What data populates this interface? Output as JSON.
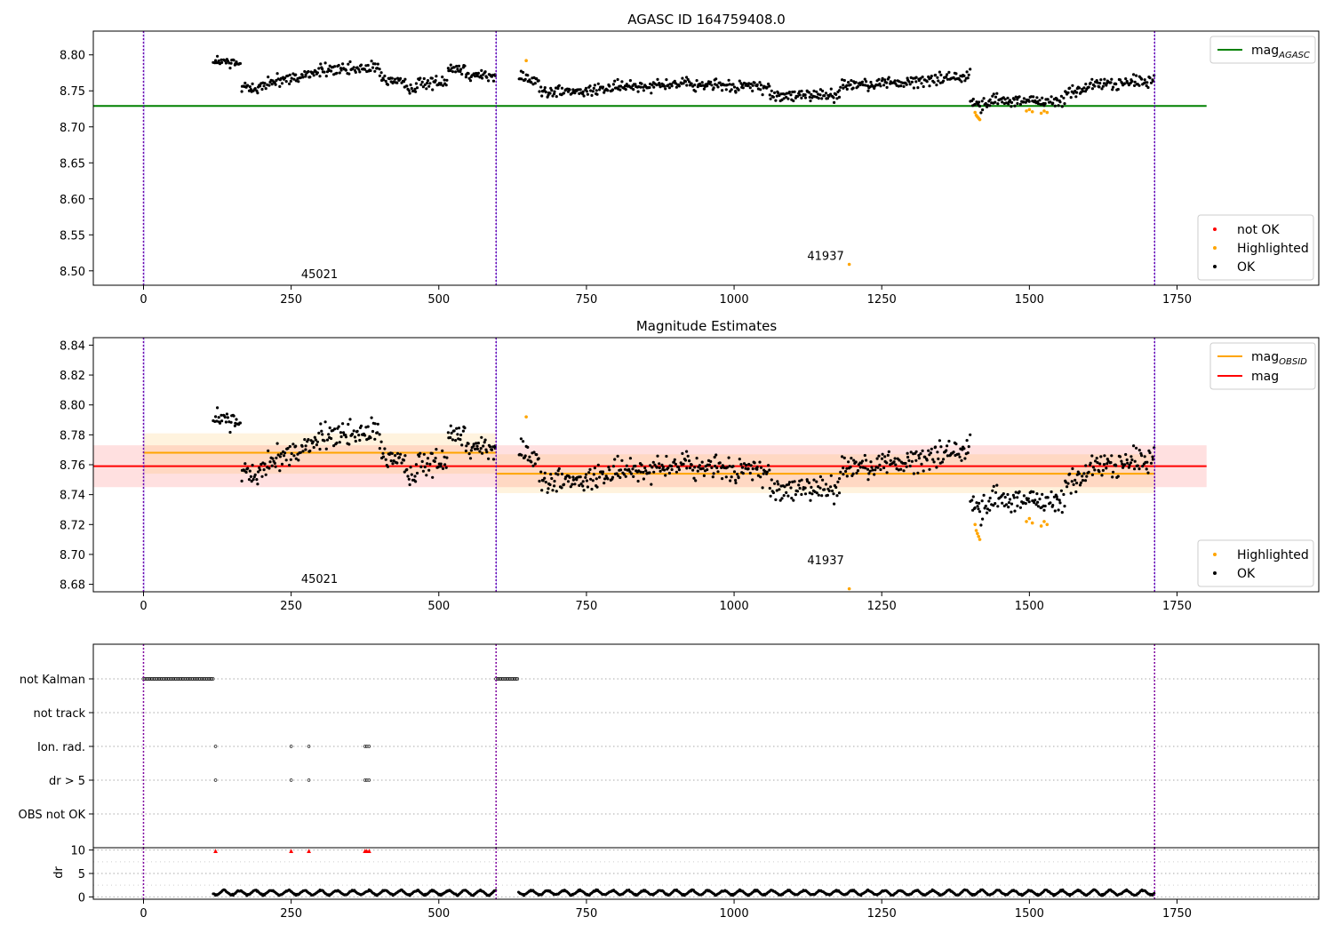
{
  "chart_data": [
    {
      "type": "scatter",
      "title": "AGASC ID 164759408.0",
      "xlim": [
        -85,
        1990
      ],
      "ylim": [
        8.48,
        8.833
      ],
      "x_ticks": [
        0,
        250,
        500,
        750,
        1000,
        1250,
        1500,
        1750
      ],
      "y_ticks": [
        8.5,
        8.55,
        8.6,
        8.65,
        8.7,
        8.75,
        8.8
      ],
      "y_tick_labels": [
        "8.50",
        "8.55",
        "8.60",
        "8.65",
        "8.70",
        "8.75",
        "8.80"
      ],
      "obs_boundaries": [
        0,
        597,
        1712
      ],
      "annotations": [
        {
          "text": "45021",
          "x": 298,
          "y": 8.49
        },
        {
          "text": "41937",
          "x": 1155,
          "y": 8.515
        }
      ],
      "reference_lines": [
        {
          "name": "mag",
          "subscript": "AGASC",
          "y": 8.729,
          "x_range": [
            -85,
            1800
          ],
          "color": "#008000"
        }
      ],
      "legend_lines": [
        {
          "label": "mag",
          "sub": "AGASC",
          "color": "#008000"
        }
      ],
      "legend_points": [
        {
          "label": "not OK",
          "color": "#ff0000"
        },
        {
          "label": "Highlighted",
          "color": "#ffa500"
        },
        {
          "label": "OK",
          "color": "#000000"
        }
      ],
      "series": [
        {
          "name": "OK",
          "color": "#000000",
          "segments": [
            {
              "x": [
                118,
                165
              ],
              "y": [
                8.792,
                8.786
              ]
            },
            {
              "x": [
                165,
                210
              ],
              "y": [
                8.756,
                8.754
              ]
            },
            {
              "x": [
                210,
                265
              ],
              "y": [
                8.764,
                8.768
              ]
            },
            {
              "x": [
                265,
                320
              ],
              "y": [
                8.772,
                8.782
              ]
            },
            {
              "x": [
                320,
                400
              ],
              "y": [
                8.778,
                8.782
              ]
            },
            {
              "x": [
                400,
                460
              ],
              "y": [
                8.77,
                8.752
              ]
            },
            {
              "x": [
                460,
                515
              ],
              "y": [
                8.758,
                8.765
              ]
            },
            {
              "x": [
                515,
                545
              ],
              "y": [
                8.782,
                8.78
              ]
            },
            {
              "x": [
                545,
                597
              ],
              "y": [
                8.775,
                8.768
              ]
            },
            {
              "x": [
                635,
                670
              ],
              "y": [
                8.772,
                8.762
              ]
            },
            {
              "x": [
                670,
                760
              ],
              "y": [
                8.75,
                8.748
              ]
            },
            {
              "x": [
                760,
                880
              ],
              "y": [
                8.752,
                8.76
              ]
            },
            {
              "x": [
                880,
                1060
              ],
              "y": [
                8.76,
                8.755
              ]
            },
            {
              "x": [
                1060,
                1180
              ],
              "y": [
                8.742,
                8.745
              ]
            },
            {
              "x": [
                1180,
                1270
              ],
              "y": [
                8.758,
                8.762
              ]
            },
            {
              "x": [
                1270,
                1400
              ],
              "y": [
                8.76,
                8.772
              ]
            },
            {
              "x": [
                1400,
                1430
              ],
              "y": [
                8.735,
                8.728
              ]
            },
            {
              "x": [
                1430,
                1560
              ],
              "y": [
                8.738,
                8.735
              ]
            },
            {
              "x": [
                1560,
                1600
              ],
              "y": [
                8.748,
                8.752
              ]
            },
            {
              "x": [
                1600,
                1712
              ],
              "y": [
                8.758,
                8.764
              ]
            }
          ]
        },
        {
          "name": "Highlighted",
          "color": "#ffa500",
          "x": [
            648,
            1408,
            1410,
            1412,
            1414,
            1416,
            1495,
            1500,
            1505,
            1520,
            1525,
            1530,
            1195
          ],
          "y": [
            8.792,
            8.72,
            8.716,
            8.714,
            8.712,
            8.71,
            8.722,
            8.724,
            8.721,
            8.719,
            8.722,
            8.72,
            8.509
          ]
        }
      ]
    },
    {
      "type": "scatter",
      "title": "Magnitude Estimates",
      "xlim": [
        -85,
        1990
      ],
      "ylim": [
        8.675,
        8.845
      ],
      "x_ticks": [
        0,
        250,
        500,
        750,
        1000,
        1250,
        1500,
        1750
      ],
      "y_ticks": [
        8.68,
        8.7,
        8.72,
        8.74,
        8.76,
        8.78,
        8.8,
        8.82,
        8.84
      ],
      "y_tick_labels": [
        "8.68",
        "8.70",
        "8.72",
        "8.74",
        "8.76",
        "8.78",
        "8.80",
        "8.82",
        "8.84"
      ],
      "obs_boundaries": [
        0,
        597,
        1712
      ],
      "annotations": [
        {
          "text": "45021",
          "x": 298,
          "y": 8.681
        },
        {
          "text": "41937",
          "x": 1155,
          "y": 8.6935
        }
      ],
      "bands": [
        {
          "x_range": [
            -85,
            1800
          ],
          "y_range": [
            8.745,
            8.773
          ],
          "color": "#ff0000",
          "opacity": 0.12
        },
        {
          "x_range": [
            0,
            597
          ],
          "y_range": [
            8.754,
            8.781
          ],
          "color": "#ffa500",
          "opacity": 0.13
        },
        {
          "x_range": [
            597,
            1712
          ],
          "y_range": [
            8.741,
            8.767
          ],
          "color": "#ffa500",
          "opacity": 0.13
        }
      ],
      "reference_lines": [
        {
          "name": "mag",
          "y": 8.759,
          "x_range": [
            -85,
            1800
          ],
          "color": "#ff0000"
        },
        {
          "name": "mag",
          "subscript": "OBSID",
          "y": 8.768,
          "x_range": [
            0,
            597
          ],
          "color": "#ffa500"
        },
        {
          "name": "mag",
          "subscript": "OBSID",
          "y": 8.754,
          "x_range": [
            597,
            1712
          ],
          "color": "#ffa500"
        }
      ],
      "legend_lines": [
        {
          "label": "mag",
          "sub": "OBSID",
          "color": "#ffa500"
        },
        {
          "label": "mag",
          "sub": "",
          "color": "#ff0000"
        }
      ],
      "legend_points": [
        {
          "label": "Highlighted",
          "color": "#ffa500"
        },
        {
          "label": "OK",
          "color": "#000000"
        }
      ],
      "series": [
        {
          "name": "OK",
          "color": "#000000",
          "segments": [
            {
              "x": [
                118,
                165
              ],
              "y": [
                8.792,
                8.786
              ]
            },
            {
              "x": [
                165,
                210
              ],
              "y": [
                8.756,
                8.754
              ]
            },
            {
              "x": [
                210,
                265
              ],
              "y": [
                8.764,
                8.768
              ]
            },
            {
              "x": [
                265,
                320
              ],
              "y": [
                8.772,
                8.782
              ]
            },
            {
              "x": [
                320,
                400
              ],
              "y": [
                8.778,
                8.782
              ]
            },
            {
              "x": [
                400,
                460
              ],
              "y": [
                8.77,
                8.752
              ]
            },
            {
              "x": [
                460,
                515
              ],
              "y": [
                8.758,
                8.765
              ]
            },
            {
              "x": [
                515,
                545
              ],
              "y": [
                8.782,
                8.78
              ]
            },
            {
              "x": [
                545,
                597
              ],
              "y": [
                8.775,
                8.768
              ]
            },
            {
              "x": [
                635,
                670
              ],
              "y": [
                8.772,
                8.762
              ]
            },
            {
              "x": [
                670,
                760
              ],
              "y": [
                8.75,
                8.748
              ]
            },
            {
              "x": [
                760,
                880
              ],
              "y": [
                8.752,
                8.76
              ]
            },
            {
              "x": [
                880,
                1060
              ],
              "y": [
                8.76,
                8.755
              ]
            },
            {
              "x": [
                1060,
                1180
              ],
              "y": [
                8.742,
                8.745
              ]
            },
            {
              "x": [
                1180,
                1270
              ],
              "y": [
                8.758,
                8.762
              ]
            },
            {
              "x": [
                1270,
                1400
              ],
              "y": [
                8.76,
                8.772
              ]
            },
            {
              "x": [
                1400,
                1430
              ],
              "y": [
                8.735,
                8.728
              ]
            },
            {
              "x": [
                1430,
                1560
              ],
              "y": [
                8.738,
                8.735
              ]
            },
            {
              "x": [
                1560,
                1600
              ],
              "y": [
                8.748,
                8.752
              ]
            },
            {
              "x": [
                1600,
                1712
              ],
              "y": [
                8.758,
                8.764
              ]
            }
          ]
        },
        {
          "name": "Highlighted",
          "color": "#ffa500",
          "x": [
            648,
            1408,
            1410,
            1412,
            1414,
            1416,
            1495,
            1500,
            1505,
            1520,
            1525,
            1530,
            1195
          ],
          "y": [
            8.792,
            8.72,
            8.716,
            8.714,
            8.712,
            8.71,
            8.722,
            8.724,
            8.721,
            8.719,
            8.722,
            8.72,
            8.677
          ]
        }
      ]
    },
    {
      "type": "scatter",
      "title": "",
      "xlim": [
        -85,
        1990
      ],
      "x_ticks": [
        0,
        250,
        500,
        750,
        1000,
        1250,
        1500,
        1750
      ],
      "obs_boundaries": [
        0,
        597,
        1712
      ],
      "flag_rows": [
        "not Kalman",
        "not track",
        "Ion. rad.",
        "dr > 5",
        "OBS not OK"
      ],
      "flags": {
        "not Kalman": {
          "ranges": [
            [
              0,
              118
            ],
            [
              597,
              635
            ]
          ]
        },
        "not track": {
          "ranges": []
        },
        "Ion. rad.": {
          "x": [
            122,
            250,
            280,
            375,
            378,
            382
          ]
        },
        "dr > 5": {
          "x": [
            122,
            250,
            280,
            375,
            378,
            382
          ]
        },
        "OBS not OK": {
          "x": []
        }
      },
      "dr_panel": {
        "ylabel": "dr",
        "ylim": [
          -0.5,
          10.5
        ],
        "y_ticks": [
          0,
          5,
          10
        ],
        "capped_ranges": [
          [
            0,
            118
          ],
          [
            597,
            635
          ]
        ],
        "capped_x": [
          122,
          250,
          280,
          375,
          378,
          382
        ],
        "capped_value": 10,
        "trace_ranges": [
          [
            118,
            597
          ],
          [
            635,
            1712
          ]
        ],
        "trace_level": 0.9,
        "trace_amplitude": 0.6
      }
    }
  ]
}
